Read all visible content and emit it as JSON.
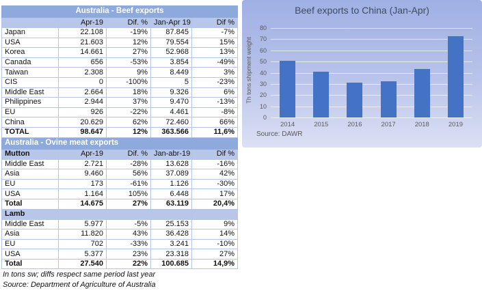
{
  "beef_table": {
    "title": "Australia - Beef exports",
    "columns": [
      "",
      "Apr-19",
      "Dif. %",
      "Jan-Apr 19",
      "Dif %"
    ],
    "rows": [
      [
        "Japan",
        "22.108",
        "-19%",
        "87.845",
        "-7%"
      ],
      [
        "USA",
        "21.603",
        "12%",
        "79.554",
        "15%"
      ],
      [
        "Korea",
        "14.661",
        "27%",
        "52.968",
        "13%"
      ],
      [
        "Canada",
        "656",
        "-53%",
        "3.854",
        "-49%"
      ],
      [
        "Taiwan",
        "2.308",
        "9%",
        "8.449",
        "3%"
      ],
      [
        "CIS",
        "0",
        "-100%",
        "5",
        "-23%"
      ],
      [
        "Middle East",
        "2.664",
        "18%",
        "9.326",
        "6%"
      ],
      [
        "Philippines",
        "2.944",
        "37%",
        "9.470",
        "-13%"
      ],
      [
        "EU",
        "926",
        "-22%",
        "4.461",
        "-8%"
      ],
      [
        "China",
        "20.629",
        "62%",
        "72.460",
        "66%"
      ]
    ],
    "total_row": [
      "TOTAL",
      "98.647",
      "12%",
      "363.566",
      "11,6%"
    ]
  },
  "ovine_table": {
    "title": "Australia - Ovine meat exports",
    "sections": [
      {
        "header": [
          "Mutton",
          "Apr-19",
          "Dif. %",
          "Jan-abr-19",
          "Dif %"
        ],
        "rows": [
          [
            "Middle East",
            "2.721",
            "-28%",
            "13.628",
            "-16%"
          ],
          [
            "Asia",
            "9.460",
            "56%",
            "37.089",
            "42%"
          ],
          [
            "EU",
            "173",
            "-61%",
            "1.126",
            "-30%"
          ],
          [
            "USA",
            "1.164",
            "105%",
            "6.448",
            "17%"
          ]
        ],
        "total_row": [
          "Total",
          "14.675",
          "27%",
          "63.119",
          "20,4%"
        ]
      },
      {
        "header": [
          "Lamb",
          "",
          "",
          "",
          ""
        ],
        "rows": [
          [
            "Middle East",
            "5.977",
            "-5%",
            "25.153",
            "9%"
          ],
          [
            "Asia",
            "11.820",
            "43%",
            "36.428",
            "14%"
          ],
          [
            "EU",
            "702",
            "-33%",
            "3.241",
            "-10%"
          ],
          [
            "USA",
            "5.377",
            "23%",
            "23.318",
            "27%"
          ]
        ],
        "total_row": [
          "Total",
          "27.540",
          "22%",
          "100.685",
          "14,9%"
        ]
      }
    ]
  },
  "footnotes": [
    "In tons sw; diffs respect same period last year",
    "Source: Department of Agriculture of Australia"
  ],
  "chart_data": {
    "type": "bar",
    "title": "Beef exports to China (Jan-Apr)",
    "categories": [
      "2014",
      "2015",
      "2016",
      "2017",
      "2018",
      "2019"
    ],
    "values": [
      51,
      41,
      31,
      32.5,
      43.6,
      72.5
    ],
    "xlabel": "",
    "ylabel": "Th tons shipment weight",
    "ylim": [
      0,
      80
    ],
    "ytick_step": 10,
    "grid": true,
    "legend": false,
    "source": "Source: DAWR",
    "bar_color": "#4472C4"
  },
  "colors": {
    "table_title_bg": "#8EA9DB",
    "table_header_bg": "#B8C7E9",
    "table_border": "#B4C6E7",
    "chart_bg_top": "#9FB0E4",
    "chart_bg_bottom": "#DCE0F4",
    "bar": "#4472C4",
    "chart_text": "#595959",
    "chart_title_text": "#3F4B61"
  }
}
